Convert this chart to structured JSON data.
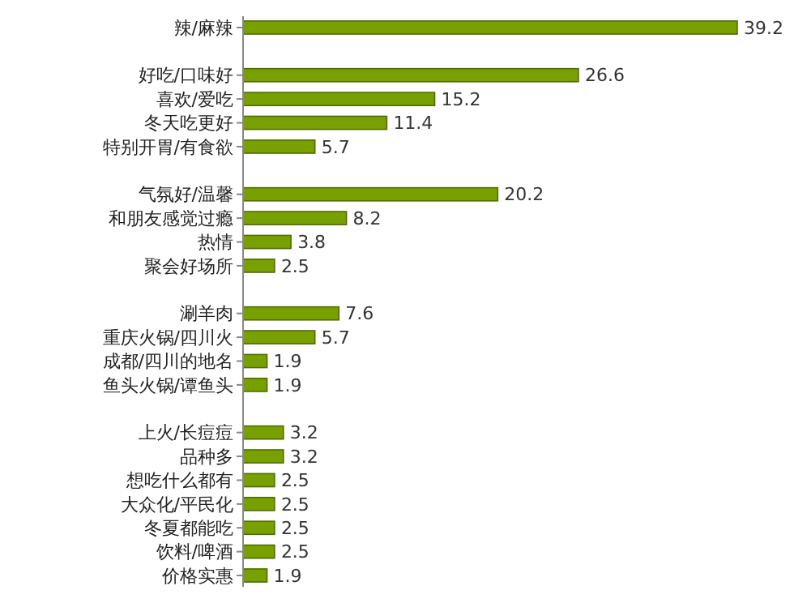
{
  "chart_data": {
    "type": "bar",
    "orientation": "horizontal",
    "data_labels": true,
    "color": "#77a000",
    "categories": [
      "辣/麻辣",
      null,
      "好吃/口味好",
      "喜欢/爱吃",
      "冬天吃更好",
      "特别开胃/有食欲",
      null,
      "气氛好/温馨",
      "和朋友感觉过瘾",
      "热情",
      "聚会好场所",
      null,
      "涮羊肉",
      "重庆火锅/四川火",
      "成都/四川的地名",
      "鱼头火锅/谭鱼头",
      null,
      "上火/长痘痘",
      "品种多",
      "想吃什么都有",
      "大众化/平民化",
      "冬夏都能吃",
      "饮料/啤酒",
      "价格实惠"
    ],
    "values": [
      39.2,
      null,
      26.6,
      15.2,
      11.4,
      5.7,
      null,
      20.2,
      8.2,
      3.8,
      2.5,
      null,
      7.6,
      5.7,
      1.9,
      1.9,
      null,
      3.2,
      3.2,
      2.5,
      2.5,
      2.5,
      2.5,
      1.9
    ]
  }
}
